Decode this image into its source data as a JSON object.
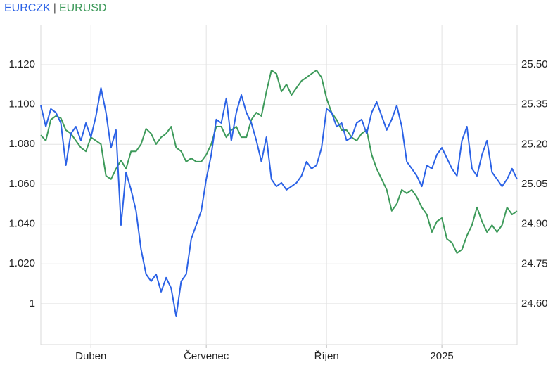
{
  "chart_data": {
    "type": "line",
    "legend_separator": "|",
    "categories": [
      null,
      null,
      null,
      null,
      null,
      null,
      null,
      null,
      null,
      null,
      "Duben",
      null,
      null,
      null,
      null,
      null,
      null,
      null,
      null,
      null,
      null,
      null,
      null,
      null,
      null,
      null,
      null,
      null,
      null,
      null,
      null,
      null,
      null,
      "Červenec",
      null,
      null,
      null,
      null,
      null,
      null,
      null,
      null,
      null,
      null,
      null,
      null,
      null,
      null,
      null,
      null,
      null,
      null,
      null,
      null,
      null,
      null,
      null,
      "Říjen",
      null,
      null,
      null,
      null,
      null,
      null,
      null,
      null,
      null,
      null,
      null,
      null,
      null,
      null,
      null,
      null,
      null,
      null,
      null,
      null,
      null,
      null,
      "2025",
      null,
      null,
      null,
      null,
      null,
      null,
      null,
      null,
      null,
      null,
      null,
      null,
      null,
      null,
      null
    ],
    "series": [
      {
        "name": "EURCZK",
        "color": "#2b62e6",
        "axis": "y",
        "values": [
          1.0995,
          1.0889,
          1.0978,
          1.096,
          1.0907,
          1.0695,
          1.0854,
          1.0889,
          1.0819,
          1.0907,
          1.0836,
          1.0942,
          1.1083,
          1.096,
          1.0783,
          1.0872,
          1.0395,
          1.066,
          1.0572,
          1.0466,
          1.0272,
          1.0148,
          1.0113,
          1.0148,
          1.006,
          1.0131,
          1.0078,
          0.9936,
          1.0113,
          1.0148,
          1.0325,
          1.0395,
          1.0466,
          1.0625,
          1.0748,
          1.0925,
          1.0907,
          1.1031,
          1.0819,
          1.096,
          1.1048,
          1.096,
          1.0907,
          1.0819,
          1.0713,
          1.0836,
          1.0625,
          1.0589,
          1.0607,
          1.0572,
          1.0589,
          1.0607,
          1.0642,
          1.0713,
          1.0678,
          1.0695,
          1.0783,
          1.0978,
          1.096,
          1.0889,
          1.0907,
          1.0819,
          1.0836,
          1.0907,
          1.0925,
          1.0854,
          1.096,
          1.1013,
          1.0942,
          1.0872,
          1.0925,
          1.0995,
          1.0889,
          1.0713,
          1.0678,
          1.0642,
          1.0589,
          1.0695,
          1.0678,
          1.0748,
          1.0783,
          1.0731,
          1.0678,
          1.0642,
          1.0819,
          1.0889,
          1.0678,
          1.0642,
          1.0748,
          1.0819,
          1.066,
          1.0625,
          1.0589,
          1.0625,
          1.0678,
          1.0625
        ]
      },
      {
        "name": "EURUSD",
        "color": "#3d9a5a",
        "axis": "y2",
        "values": [
          25.235,
          25.214,
          25.293,
          25.307,
          25.299,
          25.254,
          25.241,
          25.214,
          25.188,
          25.174,
          25.227,
          25.214,
          25.201,
          25.082,
          25.069,
          25.108,
          25.14,
          25.108,
          25.174,
          25.174,
          25.201,
          25.259,
          25.241,
          25.201,
          25.227,
          25.241,
          25.267,
          25.188,
          25.174,
          25.135,
          25.148,
          25.135,
          25.135,
          25.161,
          25.201,
          25.267,
          25.267,
          25.227,
          25.254,
          25.267,
          25.227,
          25.227,
          25.293,
          25.32,
          25.307,
          25.399,
          25.479,
          25.466,
          25.399,
          25.426,
          25.386,
          25.413,
          25.439,
          25.452,
          25.466,
          25.479,
          25.452,
          25.373,
          25.32,
          25.293,
          25.254,
          25.254,
          25.227,
          25.214,
          25.241,
          25.254,
          25.161,
          25.108,
          25.069,
          25.029,
          24.95,
          24.976,
          25.029,
          25.016,
          25.029,
          25.002,
          24.963,
          24.936,
          24.87,
          24.91,
          24.923,
          24.844,
          24.83,
          24.791,
          24.804,
          24.857,
          24.896,
          24.963,
          24.91,
          24.87,
          24.896,
          24.87,
          24.896,
          24.963,
          24.936,
          24.949
        ]
      }
    ],
    "ylim": [
      0.9795,
      1.1401
    ],
    "yticks": [
      1,
      {
        "value": 1.02,
        "label": "1.020"
      },
      {
        "value": 1.04,
        "label": "1.040"
      },
      {
        "value": 1.06,
        "label": "1.060"
      },
      {
        "value": 1.08,
        "label": "1.080"
      },
      {
        "value": 1.1,
        "label": "1.100"
      },
      {
        "value": 1.12,
        "label": "1.120"
      }
    ],
    "y2lim": [
      24.4465,
      25.651
    ],
    "y2ticks": [
      {
        "value": 24.6,
        "label": "24.60"
      },
      {
        "value": 24.75,
        "label": "24.75"
      },
      {
        "value": 24.9,
        "label": "24.90"
      },
      {
        "value": 25.05,
        "label": "25.05"
      },
      {
        "value": 25.2,
        "label": "25.20"
      },
      {
        "value": 25.35,
        "label": "25.35"
      },
      {
        "value": 25.5,
        "label": "25.50"
      }
    ],
    "grid": true
  }
}
